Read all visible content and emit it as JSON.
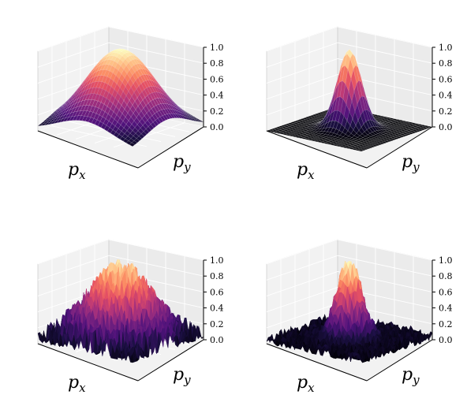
{
  "chart_data": [
    {
      "type": "surface",
      "surface": "smooth-broad",
      "xlabel_main": "p",
      "xlabel_sub": "x",
      "ylabel_main": "p",
      "ylabel_sub": "y",
      "zlim": [
        0,
        1
      ],
      "zticks": [
        "0.0",
        "0.2",
        "0.4",
        "0.6",
        "0.8",
        "1.0"
      ],
      "colormap": "magma",
      "peak": 1.0
    },
    {
      "type": "surface",
      "surface": "smooth-narrow",
      "xlabel_main": "p",
      "xlabel_sub": "x",
      "ylabel_main": "p",
      "ylabel_sub": "y",
      "zlim": [
        0,
        1
      ],
      "zticks": [
        "0.0",
        "0.2",
        "0.4",
        "0.6",
        "0.8",
        "1.0"
      ],
      "colormap": "magma",
      "peak": 1.0
    },
    {
      "type": "surface",
      "surface": "noisy-broad",
      "xlabel_main": "p",
      "xlabel_sub": "x",
      "ylabel_main": "p",
      "ylabel_sub": "y",
      "zlim": [
        0,
        1
      ],
      "zticks": [
        "0.0",
        "0.2",
        "0.4",
        "0.6",
        "0.8",
        "1.0"
      ],
      "colormap": "magma",
      "peak": 1.0
    },
    {
      "type": "surface",
      "surface": "noisy-narrow",
      "xlabel_main": "p",
      "xlabel_sub": "x",
      "ylabel_main": "p",
      "ylabel_sub": "y",
      "zlim": [
        0,
        1
      ],
      "zticks": [
        "0.0",
        "0.2",
        "0.4",
        "0.6",
        "0.8",
        "1.0"
      ],
      "colormap": "magma",
      "peak": 1.0
    }
  ]
}
